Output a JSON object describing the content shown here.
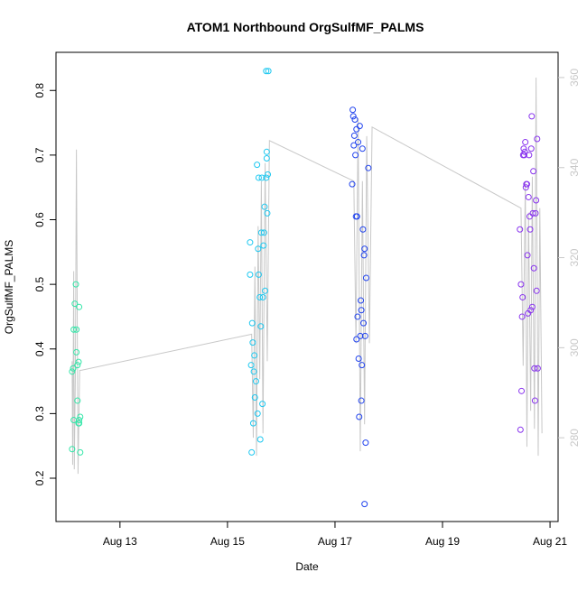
{
  "chart_data": {
    "type": "scatter",
    "title": "ATOM1 Northbound OrgSulfMF_PALMS",
    "x_label": "Date",
    "y_label": "OrgSulfMF_PALMS",
    "xlim": [
      11.81,
      21.15
    ],
    "xticks": [
      {
        "value": 13,
        "label": "Aug 13"
      },
      {
        "value": 15,
        "label": "Aug 15"
      },
      {
        "value": 17,
        "label": "Aug 17"
      },
      {
        "value": 19,
        "label": "Aug 19"
      },
      {
        "value": 21,
        "label": "Aug 21"
      }
    ],
    "ylim": [
      0.133,
      0.859
    ],
    "yticks": [
      0.2,
      0.3,
      0.4,
      0.5,
      0.6,
      0.7,
      0.8
    ],
    "y2lim": [
      261.4,
      365.6
    ],
    "y2ticks": [
      280,
      300,
      320,
      340,
      360
    ],
    "y2_color": "#c8c8c8",
    "series": [
      {
        "color": "#33e6a8",
        "x": [
          12.11,
          12.11,
          12.13,
          12.14,
          12.14,
          12.16,
          12.18,
          12.19,
          12.19,
          12.21,
          12.21,
          12.23,
          12.23,
          12.24,
          12.24,
          12.24,
          12.26,
          12.26
        ],
        "values": [
          0.245,
          0.365,
          0.37,
          0.29,
          0.43,
          0.47,
          0.5,
          0.43,
          0.395,
          0.375,
          0.32,
          0.285,
          0.38,
          0.285,
          0.465,
          0.29,
          0.295,
          0.24
        ]
      },
      {
        "color": "#1ec8f0",
        "x": [
          15.42,
          15.42,
          15.44,
          15.45,
          15.46,
          15.47,
          15.48,
          15.49,
          15.5,
          15.51,
          15.53,
          15.55,
          15.56,
          15.57,
          15.58,
          15.58,
          15.6,
          15.61,
          15.62,
          15.63,
          15.64,
          15.65,
          15.66,
          15.67,
          15.68,
          15.69,
          15.7,
          15.72,
          15.73,
          15.73,
          15.74,
          15.75,
          15.72,
          15.76
        ],
        "values": [
          0.565,
          0.515,
          0.375,
          0.24,
          0.44,
          0.41,
          0.285,
          0.365,
          0.39,
          0.325,
          0.35,
          0.685,
          0.3,
          0.555,
          0.515,
          0.665,
          0.48,
          0.26,
          0.435,
          0.58,
          0.665,
          0.315,
          0.48,
          0.56,
          0.58,
          0.62,
          0.49,
          0.665,
          0.705,
          0.695,
          0.61,
          0.67,
          0.83,
          0.83
        ]
      },
      {
        "color": "#2244ee",
        "x": [
          17.32,
          17.33,
          17.34,
          17.35,
          17.36,
          17.37,
          17.38,
          17.39,
          17.4,
          17.4,
          17.41,
          17.42,
          17.43,
          17.44,
          17.45,
          17.46,
          17.47,
          17.48,
          17.49,
          17.49,
          17.5,
          17.51,
          17.52,
          17.53,
          17.54,
          17.55,
          17.56,
          17.57,
          17.58,
          17.55,
          17.62
        ],
        "values": [
          0.655,
          0.77,
          0.76,
          0.715,
          0.73,
          0.755,
          0.7,
          0.605,
          0.74,
          0.415,
          0.605,
          0.45,
          0.72,
          0.385,
          0.295,
          0.745,
          0.42,
          0.475,
          0.32,
          0.46,
          0.375,
          0.71,
          0.585,
          0.44,
          0.545,
          0.555,
          0.42,
          0.255,
          0.51,
          0.16,
          0.68
        ]
      },
      {
        "color": "#8833ee",
        "x": [
          20.44,
          20.45,
          20.46,
          20.47,
          20.48,
          20.49,
          20.5,
          20.51,
          20.52,
          20.53,
          20.54,
          20.55,
          20.56,
          20.57,
          20.58,
          20.59,
          20.6,
          20.61,
          20.62,
          20.63,
          20.64,
          20.65,
          20.66,
          20.67,
          20.68,
          20.69,
          20.7,
          20.71,
          20.72,
          20.73,
          20.74,
          20.75,
          20.76,
          20.77
        ],
        "values": [
          0.585,
          0.275,
          0.5,
          0.335,
          0.45,
          0.48,
          0.7,
          0.71,
          0.7,
          0.705,
          0.72,
          0.65,
          0.655,
          0.655,
          0.545,
          0.455,
          0.635,
          0.7,
          0.605,
          0.585,
          0.46,
          0.71,
          0.76,
          0.465,
          0.61,
          0.675,
          0.525,
          0.37,
          0.32,
          0.61,
          0.63,
          0.49,
          0.725,
          0.37
        ]
      },
      {
        "color": "#c8c8c8",
        "axis": "y2",
        "style": "line",
        "x": [
          12.11,
          12.12,
          12.14,
          12.15,
          12.17,
          12.19,
          12.22,
          12.25,
          12.28,
          15.45,
          15.48,
          15.51,
          15.54,
          15.57,
          15.6,
          15.63,
          15.66,
          15.7,
          15.74,
          15.78,
          17.35,
          17.39,
          17.43,
          17.47,
          17.51,
          17.55,
          17.59,
          17.64,
          17.69,
          20.46,
          20.5,
          20.54,
          20.57,
          20.6,
          20.64,
          20.67,
          20.71,
          20.74,
          20.78,
          20.81,
          20.85
        ],
        "values": [
          297,
          274,
          317,
          273,
          293,
          344,
          272,
          295,
          295,
          303,
          280,
          318,
          276,
          327,
          293,
          337,
          281,
          341,
          297,
          346,
          337,
          301,
          351,
          277,
          337,
          283,
          347,
          301,
          349,
          331,
          296,
          337,
          278,
          330,
          286,
          338,
          282,
          360,
          276,
          331,
          281
        ]
      }
    ]
  }
}
